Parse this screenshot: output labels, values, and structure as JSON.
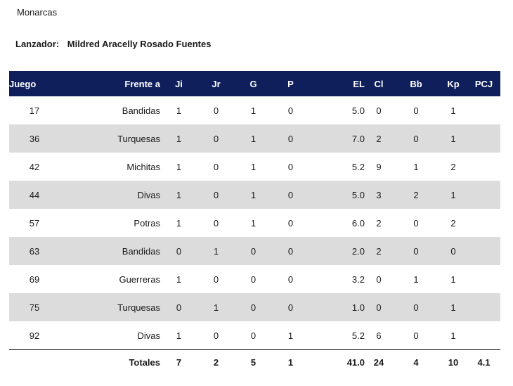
{
  "team": "Monarcas",
  "pitcher": {
    "label": "Lanzador:",
    "name": "Mildred Aracelly Rosado Fuentes"
  },
  "columns": [
    "Juego",
    "Frente a",
    "Ji",
    "Jr",
    "G",
    "P",
    "EL",
    "Cl",
    "Bb",
    "Kp",
    "PCJ"
  ],
  "rows": [
    [
      "17",
      "Bandidas",
      "1",
      "0",
      "1",
      "0",
      "5.0",
      "0",
      "0",
      "1",
      ""
    ],
    [
      "36",
      "Turquesas",
      "1",
      "0",
      "1",
      "0",
      "7.0",
      "2",
      "0",
      "1",
      ""
    ],
    [
      "42",
      "Michitas",
      "1",
      "0",
      "1",
      "0",
      "5.2",
      "9",
      "1",
      "2",
      ""
    ],
    [
      "44",
      "Divas",
      "1",
      "0",
      "1",
      "0",
      "5.0",
      "3",
      "2",
      "1",
      ""
    ],
    [
      "57",
      "Potras",
      "1",
      "0",
      "1",
      "0",
      "6.0",
      "2",
      "0",
      "2",
      ""
    ],
    [
      "63",
      "Bandidas",
      "0",
      "1",
      "0",
      "0",
      "2.0",
      "2",
      "0",
      "0",
      ""
    ],
    [
      "69",
      "Guerreras",
      "1",
      "0",
      "0",
      "0",
      "3.2",
      "0",
      "1",
      "1",
      ""
    ],
    [
      "75",
      "Turquesas",
      "0",
      "1",
      "0",
      "0",
      "1.0",
      "0",
      "0",
      "1",
      ""
    ],
    [
      "92",
      "Divas",
      "1",
      "0",
      "0",
      "1",
      "5.2",
      "6",
      "0",
      "1",
      ""
    ]
  ],
  "totals": {
    "label": "Totales",
    "values": [
      "7",
      "2",
      "5",
      "1",
      "41.0",
      "24",
      "4",
      "10",
      "4.1"
    ]
  }
}
